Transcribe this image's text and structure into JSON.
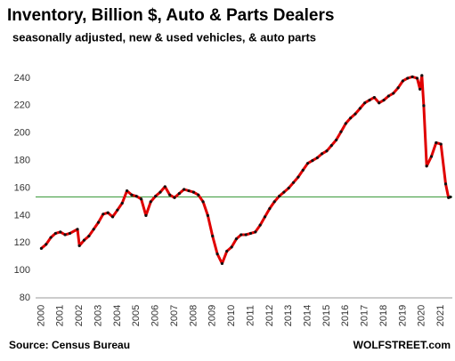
{
  "chart_data": {
    "type": "line",
    "title": "Inventory, Billion $, Auto & Parts Dealers",
    "subtitle": "seasonally adjusted, new & used vehicles, & auto parts",
    "source": "Source: Census Bureau",
    "credit": "WOLFSTREET.com",
    "x": [
      2000,
      2000.25,
      2000.5,
      2000.75,
      2001,
      2001.25,
      2001.5,
      2001.9,
      2002,
      2002.25,
      2002.5,
      2002.75,
      2003,
      2003.25,
      2003.5,
      2003.75,
      2004,
      2004.25,
      2004.5,
      2004.75,
      2005,
      2005.25,
      2005.5,
      2005.75,
      2006,
      2006.25,
      2006.5,
      2006.75,
      2007,
      2007.25,
      2007.5,
      2007.75,
      2008,
      2008.25,
      2008.5,
      2008.75,
      2009,
      2009.25,
      2009.5,
      2009.75,
      2010,
      2010.25,
      2010.5,
      2010.75,
      2011,
      2011.25,
      2011.5,
      2011.75,
      2012,
      2012.25,
      2012.5,
      2012.75,
      2013,
      2013.25,
      2013.5,
      2013.75,
      2014,
      2014.25,
      2014.5,
      2014.75,
      2015,
      2015.25,
      2015.5,
      2015.75,
      2016,
      2016.25,
      2016.5,
      2016.75,
      2017,
      2017.25,
      2017.5,
      2017.75,
      2018,
      2018.25,
      2018.5,
      2018.75,
      2019,
      2019.25,
      2019.5,
      2019.75,
      2019.9,
      2020,
      2020.1,
      2020.25,
      2020.5,
      2020.75,
      2021,
      2021.25,
      2021.4,
      2021.5
    ],
    "series": [
      {
        "color": "#e00000",
        "values": [
          116,
          119,
          124,
          127,
          128,
          126,
          127,
          130,
          118,
          122,
          125,
          130,
          135,
          141,
          142,
          139,
          144,
          149,
          158,
          155,
          154,
          152,
          140,
          150,
          154,
          157,
          161,
          155,
          153,
          156,
          159,
          158,
          157,
          155,
          150,
          140,
          125,
          112,
          105,
          114,
          117,
          123,
          126,
          126,
          127,
          128,
          133,
          139,
          145,
          150,
          154,
          157,
          160,
          164,
          168,
          173,
          178,
          180,
          182,
          185,
          187,
          191,
          195,
          201,
          207,
          211,
          214,
          218,
          222,
          224,
          226,
          222,
          224,
          227,
          229,
          233,
          238,
          240,
          241,
          240,
          232,
          242,
          220,
          176,
          183,
          193,
          192,
          163,
          153,
          153.5
        ]
      }
    ],
    "reference_line": {
      "value": 153.5,
      "color": "#3a9a3a"
    },
    "xlim": [
      1999.7,
      2021.6
    ],
    "ylim": [
      80,
      250
    ],
    "xticks": [
      2000,
      2001,
      2002,
      2003,
      2004,
      2005,
      2006,
      2007,
      2008,
      2009,
      2010,
      2011,
      2012,
      2013,
      2014,
      2015,
      2016,
      2017,
      2018,
      2019,
      2020,
      2021
    ],
    "yticks": [
      80,
      100,
      120,
      140,
      160,
      180,
      200,
      220,
      240
    ],
    "grid": false,
    "marker_color": "#111111"
  }
}
